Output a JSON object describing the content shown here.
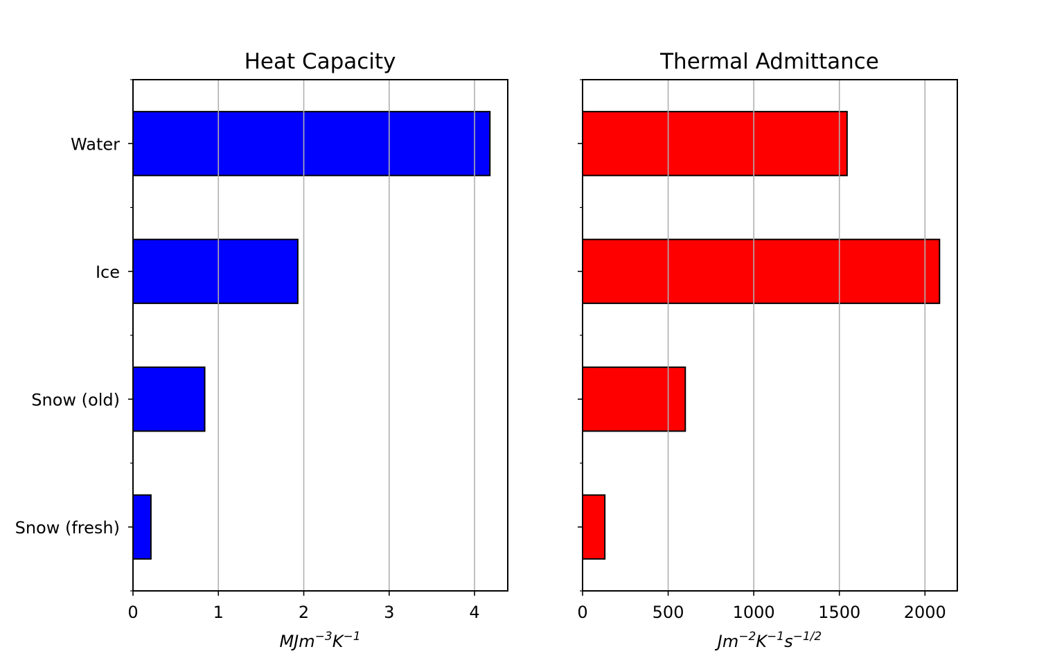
{
  "chart_data": [
    {
      "type": "bar",
      "orientation": "horizontal",
      "title": "Heat Capacity",
      "categories": [
        "Water",
        "Ice",
        "Snow (old)",
        "Snow (fresh)"
      ],
      "values": [
        4.18,
        1.93,
        0.84,
        0.21
      ],
      "xlabel": "MJm^{-3}K^{-1}",
      "xlabel_parts": [
        {
          "text": "MJm",
          "sup": false
        },
        {
          "text": "−3",
          "sup": true
        },
        {
          "text": "K",
          "sup": false
        },
        {
          "text": "−1",
          "sup": true
        }
      ],
      "ylabel": "",
      "xlim": [
        0,
        4.389
      ],
      "xticks": [
        0,
        1,
        2,
        3,
        4
      ],
      "xtick_labels": [
        "0",
        "1",
        "2",
        "3",
        "4"
      ],
      "show_category_labels": true,
      "grid": "x",
      "bar_color": "#0000ff",
      "edge_color": "#000000"
    },
    {
      "type": "bar",
      "orientation": "horizontal",
      "title": "Thermal Admittance",
      "categories": [
        "Water",
        "Ice",
        "Snow (old)",
        "Snow (fresh)"
      ],
      "values": [
        1545,
        2085,
        600,
        130
      ],
      "xlabel": "Jm^{-2}K^{-1}s^{-1/2}",
      "xlabel_parts": [
        {
          "text": "Jm",
          "sup": false
        },
        {
          "text": "−2",
          "sup": true
        },
        {
          "text": "K",
          "sup": false
        },
        {
          "text": "−1",
          "sup": true
        },
        {
          "text": "s",
          "sup": false
        },
        {
          "text": "−1/2",
          "sup": true
        }
      ],
      "ylabel": "",
      "xlim": [
        0,
        2189
      ],
      "xticks": [
        0,
        500,
        1000,
        1500,
        2000
      ],
      "xtick_labels": [
        "0",
        "500",
        "1000",
        "1500",
        "2000"
      ],
      "show_category_labels": false,
      "grid": "x",
      "bar_color": "#ff0000",
      "edge_color": "#000000"
    }
  ]
}
